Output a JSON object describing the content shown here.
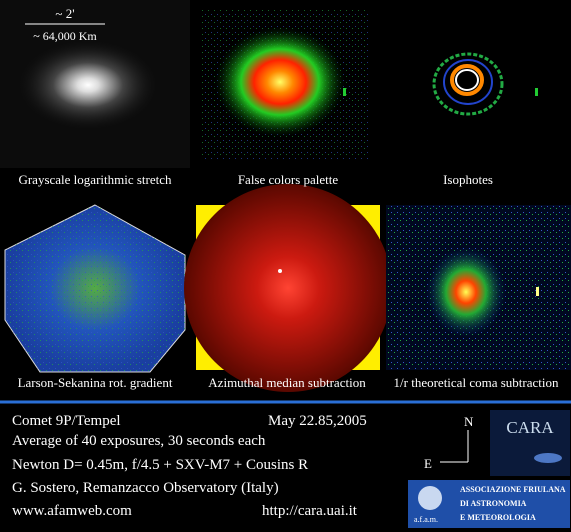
{
  "scale": {
    "angle": "~ 2'",
    "distance": "~ 64,000 Km"
  },
  "panels": [
    {
      "caption": "Grayscale logarithmic stretch"
    },
    {
      "caption": "False colors palette"
    },
    {
      "caption": "Isophotes"
    },
    {
      "caption": "Larson-Sekanina rot. gradient"
    },
    {
      "caption": "Azimuthal median subtraction"
    },
    {
      "caption": "1/r theoretical coma subtraction"
    }
  ],
  "info": {
    "title": "Comet 9P/Tempel",
    "date": "May 22.85,2005",
    "lines": [
      "Average of 40 exposures, 30 seconds each",
      "Newton D= 0.45m, f/4.5 + SXV-M7 + Cousins R",
      "G. Sostero, Remanzacco Observatory (Italy)"
    ],
    "website": "www.afamweb.com",
    "url": "http://cara.uai.it"
  },
  "compass": {
    "north": "N",
    "east": "E"
  },
  "logos": {
    "cara": "CARA",
    "afam_lines": [
      "ASSOCIAZIONE FRIULANA",
      "DI ASTRONOMIA",
      "E METEOROLOGIA"
    ],
    "afam_short": "a.f.a.m."
  }
}
